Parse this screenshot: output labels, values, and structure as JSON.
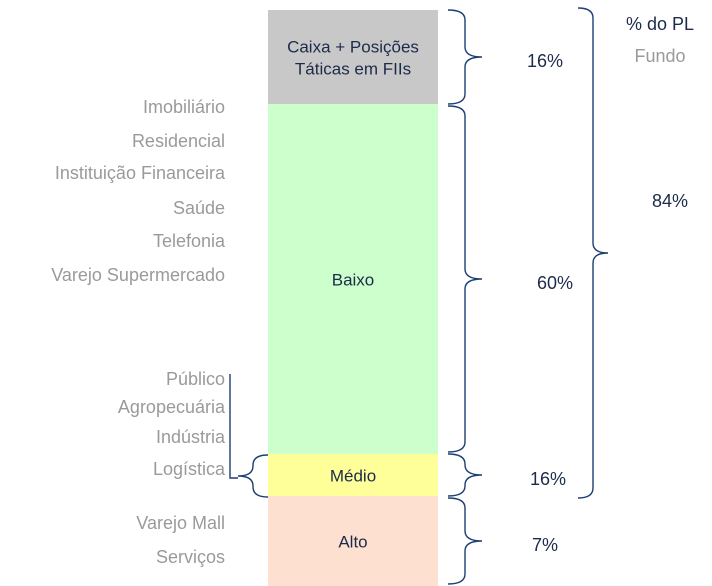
{
  "header": {
    "title": "% do PL",
    "subtitle": "Fundo"
  },
  "segments": [
    {
      "lines": [
        "Caixa + Posições",
        "Táticas em FIIs"
      ],
      "share": "16%"
    },
    {
      "lines": [
        "Baixo"
      ],
      "share": "60%"
    },
    {
      "lines": [
        "Médio"
      ],
      "share": "16%"
    },
    {
      "lines": [
        "Alto"
      ],
      "share": "7%"
    }
  ],
  "total_share": "84%",
  "sector_groups": [
    {
      "items": [
        "Imobiliário",
        "Residencial",
        "Instituição Financeira",
        "Saúde",
        "Telefonia",
        "Varejo Supermercado"
      ]
    },
    {
      "items": [
        "Público",
        "Agropecuária",
        "Indústria",
        "Logística"
      ]
    },
    {
      "items": [
        "Varejo Mall",
        "Serviços"
      ]
    }
  ]
}
